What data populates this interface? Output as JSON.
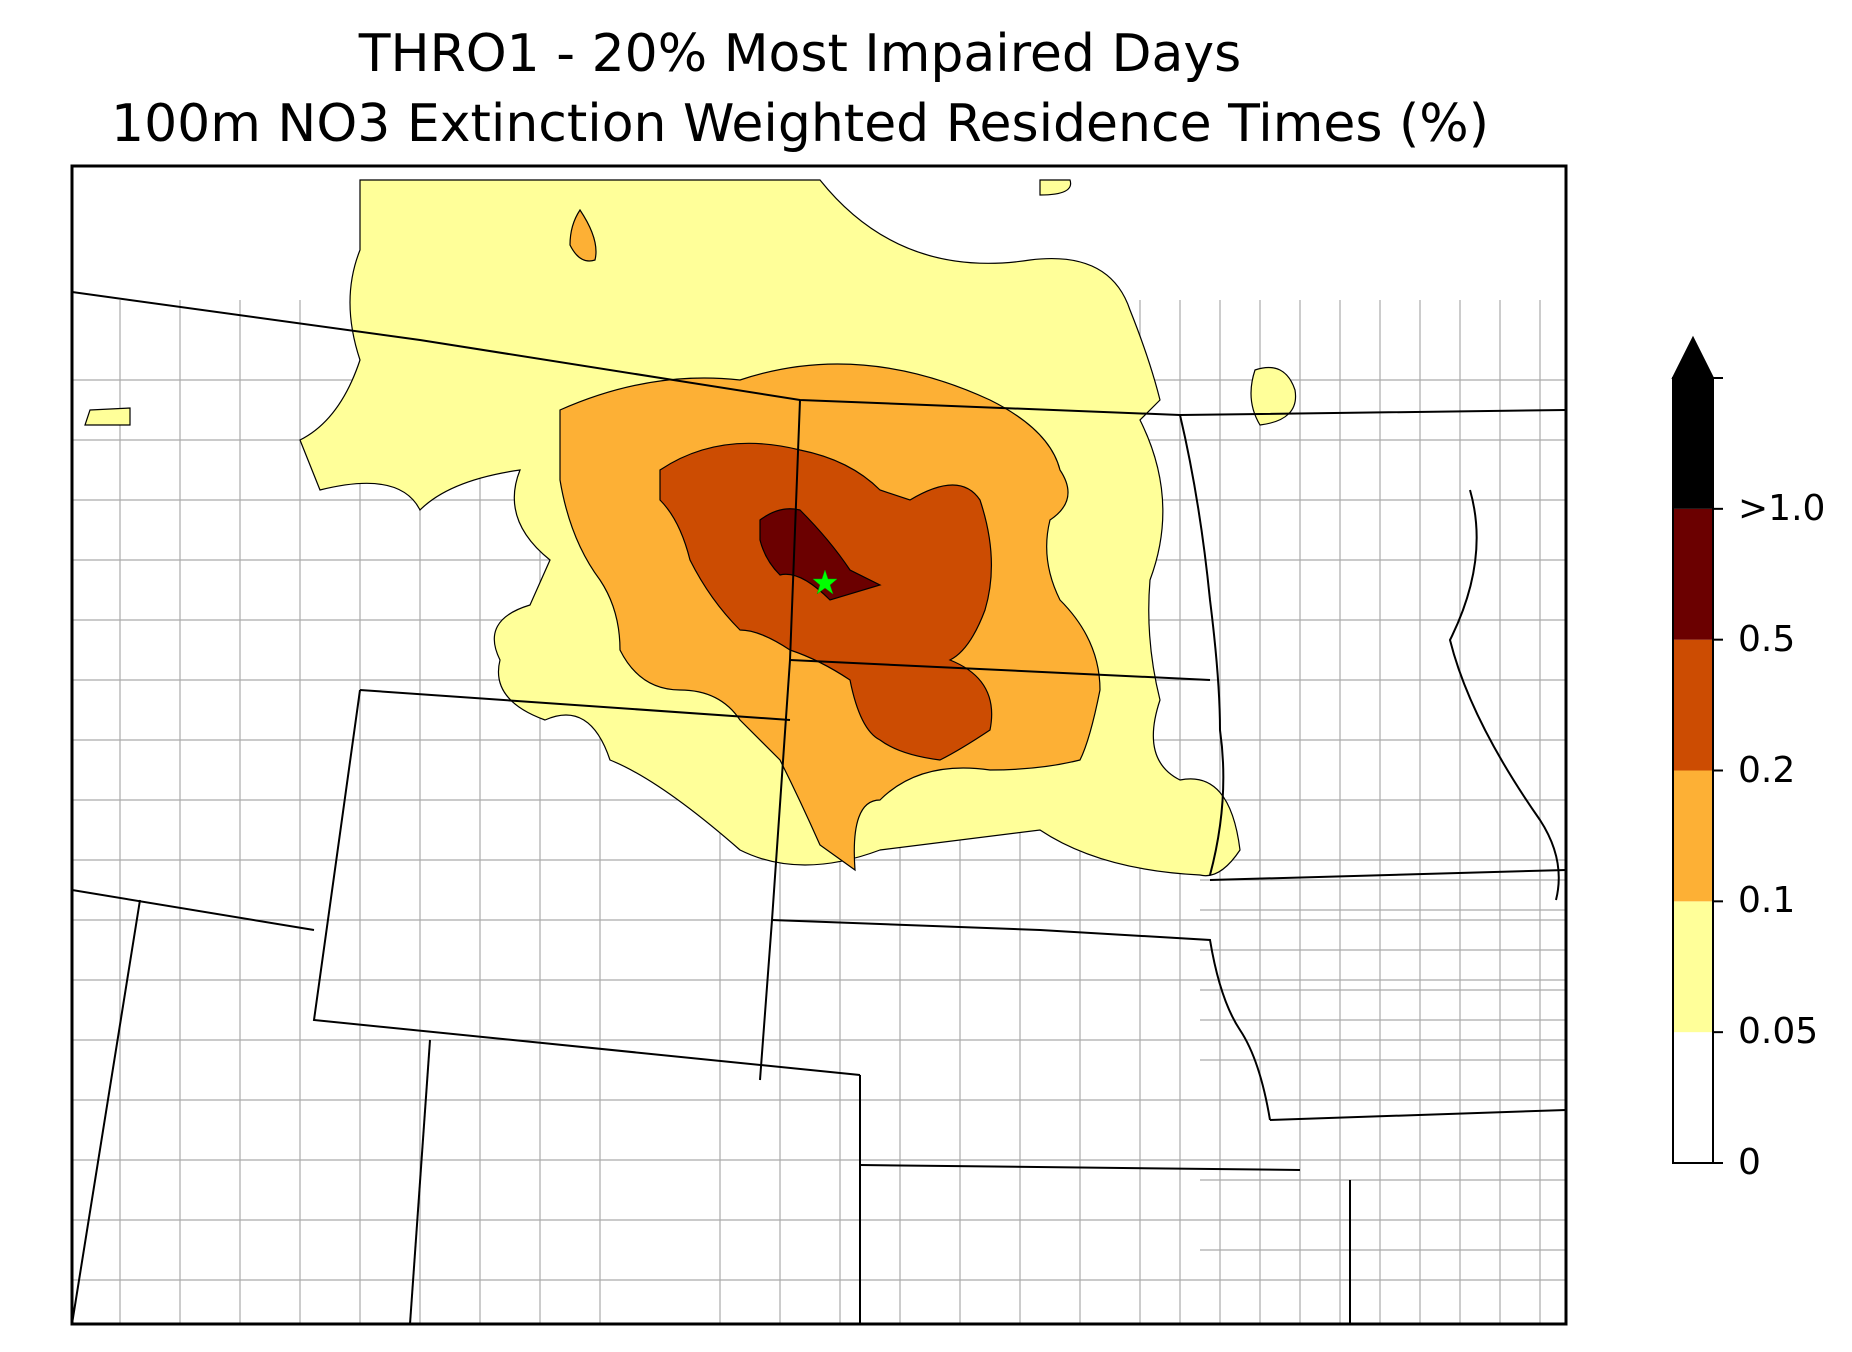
{
  "title": {
    "line1": "THRO1 - 20% Most Impaired Days",
    "line2": "100m NO3 Extinction Weighted Residence Times (%)"
  },
  "marker": {
    "name": "receptor-site",
    "color": "#00ff00",
    "symbol": "star"
  },
  "colorbar": {
    "levels": [
      {
        "label": "0",
        "color": "#ffffff"
      },
      {
        "label": "0.05",
        "color": "#ffff99"
      },
      {
        "label": "0.1",
        "color": "#fdb035"
      },
      {
        "label": "0.2",
        "color": "#cc4c02"
      },
      {
        "label": "0.5",
        "color": "#6b0000"
      },
      {
        "label": ">1.0",
        "color": "#000000"
      }
    ],
    "extend": "max"
  },
  "colors": {
    "state_border": "#000000",
    "county_border": "#aaaaaa",
    "contour_line": "#000000"
  }
}
